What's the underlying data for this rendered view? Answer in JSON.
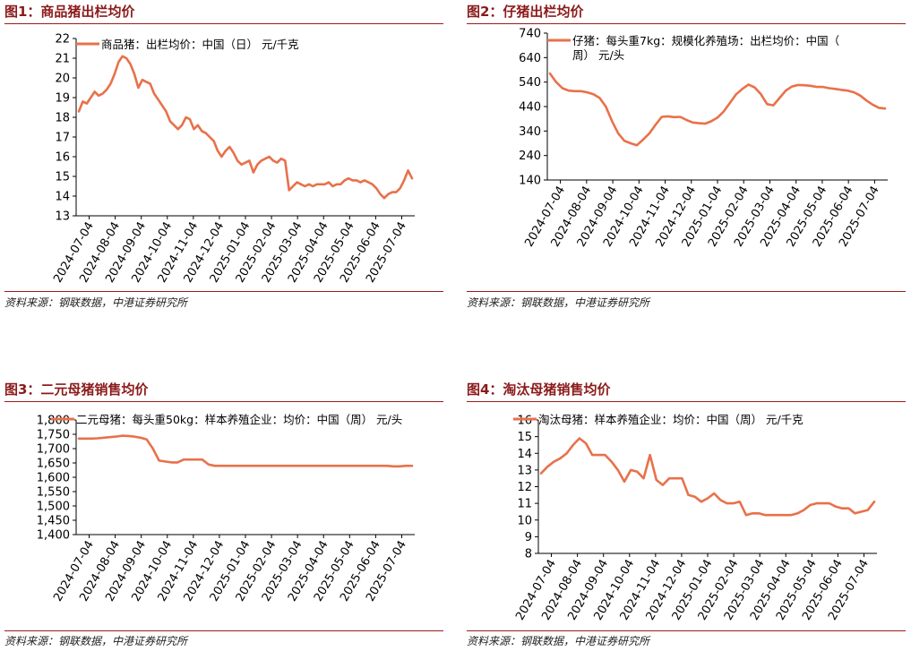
{
  "colors": {
    "line": "#e8714a",
    "title": "#8b1a1a",
    "rule": "#9b1b1b"
  },
  "panels": [
    {
      "title": "图1：商品猪出栏均价",
      "source": "资料来源：钢联数据，中港证券研究所",
      "chart_data": {
        "type": "line",
        "x_ticks": [
          "2024-07-04",
          "2024-08-04",
          "2024-09-04",
          "2024-10-04",
          "2024-11-04",
          "2024-12-04",
          "2025-01-04",
          "2025-02-04",
          "2025-03-04",
          "2025-04-04",
          "2025-05-04",
          "2025-06-04",
          "2025-07-04"
        ],
        "ylim": [
          13,
          22
        ],
        "y_ticks": [
          "13",
          "14",
          "15",
          "16",
          "17",
          "18",
          "19",
          "20",
          "21",
          "22"
        ],
        "series": [
          {
            "name": "商品猪：出栏均价：中国（日） 元/千克",
            "values": [
              18.3,
              18.8,
              18.7,
              19.0,
              19.3,
              19.1,
              19.2,
              19.4,
              19.7,
              20.2,
              20.8,
              21.1,
              21.0,
              20.7,
              20.2,
              19.5,
              19.9,
              19.8,
              19.7,
              19.2,
              18.9,
              18.6,
              18.3,
              17.8,
              17.6,
              17.4,
              17.6,
              18.0,
              17.9,
              17.4,
              17.6,
              17.3,
              17.2,
              17.0,
              16.8,
              16.3,
              16.0,
              16.3,
              16.5,
              16.2,
              15.8,
              15.6,
              15.7,
              15.8,
              15.2,
              15.6,
              15.8,
              15.9,
              16.0,
              15.8,
              15.7,
              15.9,
              15.8,
              14.3,
              14.5,
              14.7,
              14.6,
              14.5,
              14.6,
              14.5,
              14.6,
              14.6,
              14.6,
              14.7,
              14.5,
              14.6,
              14.6,
              14.8,
              14.9,
              14.8,
              14.8,
              14.7,
              14.8,
              14.7,
              14.6,
              14.4,
              14.1,
              13.9,
              14.1,
              14.2,
              14.2,
              14.4,
              14.8,
              15.3,
              14.9
            ]
          }
        ]
      }
    },
    {
      "title": "图2：仔猪出栏均价",
      "source": "资料来源：钢联数据，中港证券研究所",
      "chart_data": {
        "type": "line",
        "x_ticks": [
          "2024-07-04",
          "2024-08-04",
          "2024-09-04",
          "2024-10-04",
          "2024-11-04",
          "2024-12-04",
          "2025-01-04",
          "2025-02-04",
          "2025-03-04",
          "2025-04-04",
          "2025-05-04",
          "2025-06-04",
          "2025-07-04"
        ],
        "ylim": [
          140,
          740
        ],
        "y_ticks": [
          "140",
          "240",
          "340",
          "440",
          "540",
          "640",
          "740"
        ],
        "series": [
          {
            "name": "仔猪：每头重7kg：规模化养殖场：出栏均价：中国（周） 元/头",
            "values": [
              575,
              540,
              515,
              505,
              503,
              503,
              498,
              490,
              475,
              440,
              380,
              330,
              300,
              290,
              282,
              305,
              330,
              365,
              398,
              400,
              397,
              398,
              385,
              375,
              372,
              370,
              380,
              395,
              420,
              455,
              490,
              512,
              530,
              518,
              490,
              450,
              445,
              475,
              505,
              522,
              528,
              527,
              525,
              520,
              520,
              515,
              512,
              508,
              505,
              498,
              485,
              465,
              448,
              435,
              432
            ]
          }
        ]
      }
    },
    {
      "title": "图3：二元母猪销售均价",
      "source": "资料来源：钢联数据，中港证券研究所",
      "chart_data": {
        "type": "line",
        "x_ticks": [
          "2024-07-04",
          "2024-08-04",
          "2024-09-04",
          "2024-10-04",
          "2024-11-04",
          "2024-12-04",
          "2025-01-04",
          "2025-02-04",
          "2025-03-04",
          "2025-04-04",
          "2025-05-04",
          "2025-06-04",
          "2025-07-04"
        ],
        "ylim": [
          1400,
          1800
        ],
        "y_ticks": [
          "1,400",
          "1,450",
          "1,500",
          "1,550",
          "1,600",
          "1,650",
          "1,700",
          "1,750",
          "1,800"
        ],
        "series": [
          {
            "name": "二元母猪：每头重50kg：样本养殖企业：均价：中国（周） 元/头",
            "values": [
              1735,
              1735,
              1735,
              1736,
              1738,
              1740,
              1742,
              1745,
              1744,
              1742,
              1738,
              1732,
              1700,
              1658,
              1655,
              1652,
              1652,
              1662,
              1662,
              1662,
              1662,
              1645,
              1640,
              1640,
              1640,
              1640,
              1640,
              1640,
              1640,
              1640,
              1640,
              1640,
              1640,
              1640,
              1640,
              1640,
              1640,
              1640,
              1640,
              1640,
              1640,
              1640,
              1640,
              1640,
              1640,
              1640,
              1640,
              1640,
              1640,
              1640,
              1640,
              1638,
              1638,
              1640,
              1640
            ]
          }
        ]
      }
    },
    {
      "title": "图4：淘汰母猪销售均价",
      "source": "资料来源：钢联数据，中港证券研究所",
      "chart_data": {
        "type": "line",
        "x_ticks": [
          "2024-07-04",
          "2024-08-04",
          "2024-09-04",
          "2024-10-04",
          "2024-11-04",
          "2024-12-04",
          "2025-01-04",
          "2025-02-04",
          "2025-03-04",
          "2025-04-04",
          "2025-05-04",
          "2025-06-04",
          "2025-07-04"
        ],
        "ylim": [
          8,
          16
        ],
        "y_ticks": [
          "8",
          "9",
          "10",
          "11",
          "12",
          "13",
          "14",
          "15",
          "16"
        ],
        "series": [
          {
            "name": "淘汰母猪：样本养殖企业：均价：中国（周） 元/千克",
            "values": [
              12.8,
              13.2,
              13.5,
              13.7,
              14.0,
              14.5,
              14.9,
              14.6,
              13.9,
              13.9,
              13.9,
              13.5,
              13.0,
              12.3,
              13.0,
              12.9,
              12.5,
              13.9,
              12.4,
              12.1,
              12.5,
              12.5,
              12.5,
              11.5,
              11.4,
              11.1,
              11.3,
              11.6,
              11.2,
              11.0,
              11.0,
              11.1,
              10.3,
              10.4,
              10.4,
              10.3,
              10.3,
              10.3,
              10.3,
              10.3,
              10.4,
              10.6,
              10.9,
              11.0,
              11.0,
              11.0,
              10.8,
              10.7,
              10.7,
              10.4,
              10.5,
              10.6,
              11.1
            ]
          }
        ]
      }
    }
  ]
}
